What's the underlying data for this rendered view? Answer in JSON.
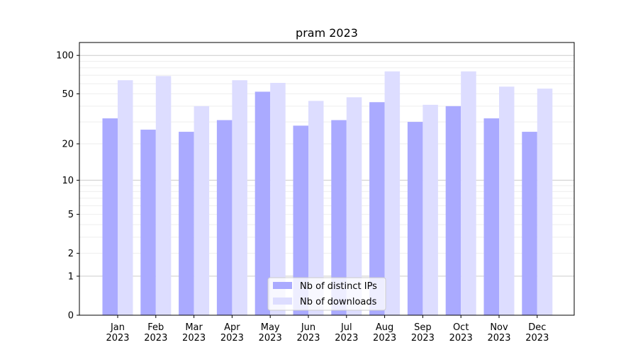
{
  "chart_data": {
    "type": "bar",
    "title": "pram 2023",
    "xlabel": "",
    "ylabel": "",
    "yscale": "log10(1+y)",
    "ylim": [
      0,
      126
    ],
    "yticks": [
      0,
      1,
      2,
      5,
      10,
      20,
      50,
      100
    ],
    "grid": true,
    "legend_position": "bottom-center",
    "categories": [
      "Jan\n2023",
      "Feb\n2023",
      "Mar\n2023",
      "Apr\n2023",
      "May\n2023",
      "Jun\n2023",
      "Jul\n2023",
      "Aug\n2023",
      "Sep\n2023",
      "Oct\n2023",
      "Nov\n2023",
      "Dec\n2023"
    ],
    "series": [
      {
        "name": "Nb of distinct IPs",
        "color": "#aaaaff",
        "values": [
          32,
          26,
          25,
          31,
          52,
          28,
          31,
          43,
          30,
          40,
          32,
          25
        ]
      },
      {
        "name": "Nb of downloads",
        "color": "#ddddff",
        "values": [
          64,
          69,
          40,
          64,
          61,
          44,
          47,
          75,
          41,
          75,
          57,
          55
        ]
      }
    ]
  }
}
